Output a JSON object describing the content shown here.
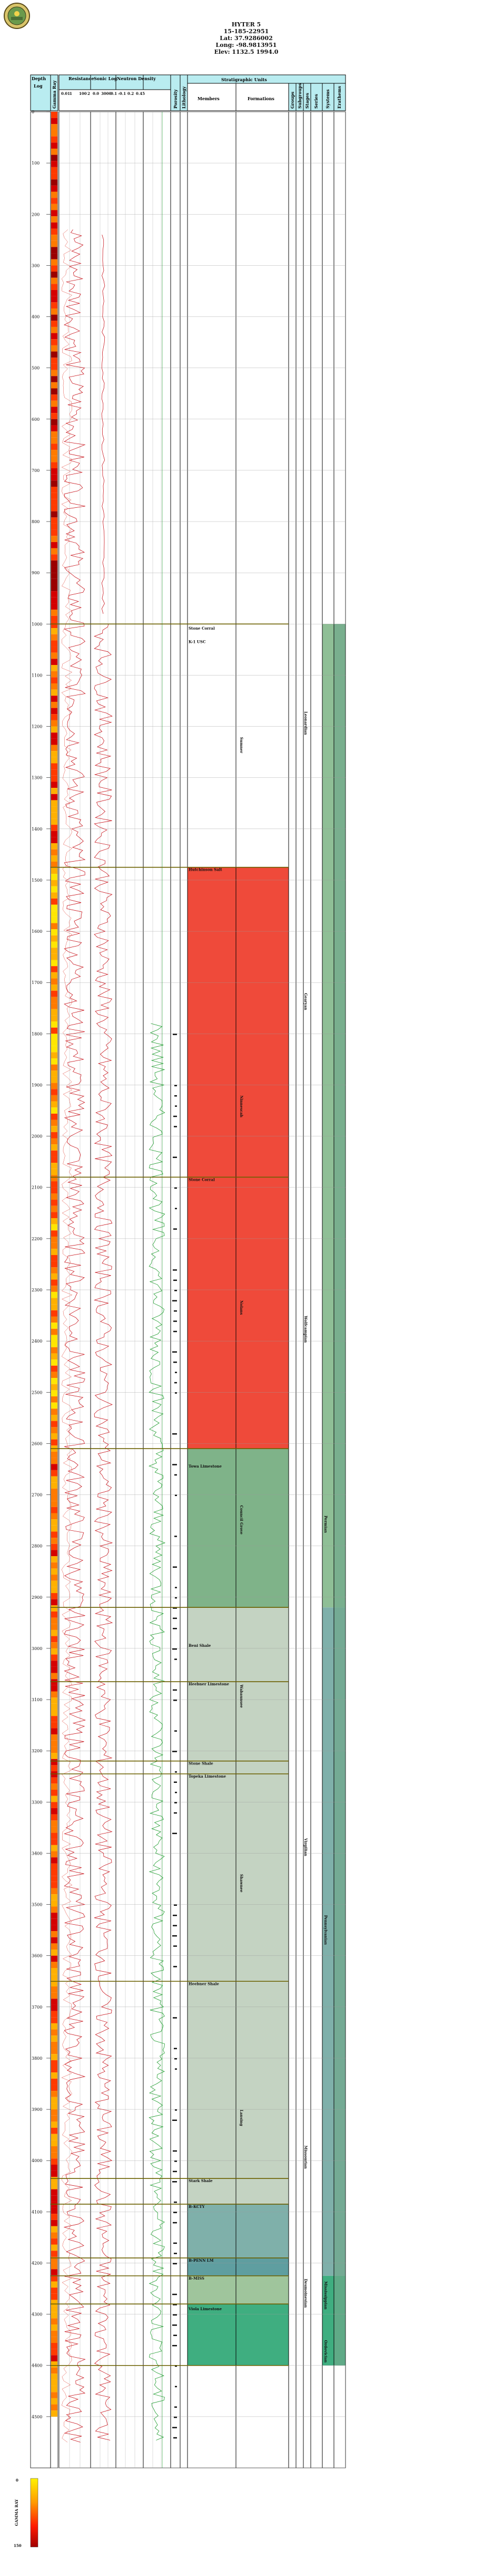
{
  "header": {
    "well_name": "HYTER 5",
    "api": "15-185-22951",
    "lat": "Lat: 37.9286002",
    "long": "Long: -98.9813951",
    "elev": "Elev: 1132.5 1994.0"
  },
  "columns": {
    "depth": "Depth",
    "log": "Log",
    "gamma_ray": "Gamma Ray",
    "gr_scale": "0",
    "resistance": "Resistance",
    "res_scale": [
      "0.01",
      "1",
      "100",
      "2"
    ],
    "sonic": "Sonic Log",
    "sonic_scale": [
      "0.0",
      "3000",
      "0.1"
    ],
    "density": "Neutron Density",
    "density_scale": [
      "-0.1",
      "0.2",
      "0.45"
    ],
    "porosity": "Porosity",
    "lithology": "Lithology",
    "strat_units": "Stratigraphic Units",
    "members": "Members",
    "formations": "Formations",
    "groups": "Groups",
    "subgroups": "Subgroups",
    "stages": "Stages",
    "series": "Series",
    "systems": "Systems",
    "erathems": "Erathems"
  },
  "depth_ticks": [
    "0",
    "100",
    "200",
    "300",
    "400",
    "500",
    "600",
    "700",
    "800",
    "900",
    "1000",
    "1100",
    "1200",
    "1300",
    "1400",
    "1500",
    "1600",
    "1700",
    "1800",
    "1900",
    "2000",
    "2100",
    "2200",
    "2300",
    "2400",
    "2500",
    "2600",
    "2700",
    "2800",
    "2900",
    "3000",
    "3100",
    "3200",
    "3300",
    "3400",
    "3500",
    "3600",
    "3700",
    "3800",
    "3900",
    "4000",
    "4100",
    "4200",
    "4300",
    "4400",
    "4500"
  ],
  "members": [
    {
      "label": "Stone Corral",
      "depth": 1004
    },
    {
      "label": "K-1 USC",
      "depth": 1030
    },
    {
      "label": "Hutchinson Salt",
      "depth": 1475
    },
    {
      "label": "Stone Corral",
      "depth": 2080
    },
    {
      "label": "Towa Limestone",
      "depth": 2640
    },
    {
      "label": "Beni Shale",
      "depth": 2990
    },
    {
      "label": "Heebner Limestone",
      "depth": 3065
    },
    {
      "label": "Stone Shale",
      "depth": 3220
    },
    {
      "label": "Topeka Limestone",
      "depth": 3245
    },
    {
      "label": "Heebner Shale",
      "depth": 3650
    },
    {
      "label": "Stark Shale",
      "depth": 4035
    },
    {
      "label": "B-KCTY",
      "depth": 4085
    },
    {
      "label": "B-PENN LM",
      "depth": 4190
    },
    {
      "label": "B-MISS",
      "depth": 4225
    },
    {
      "label": "Viola Limestone",
      "depth": 4285
    }
  ],
  "formations": [
    {
      "label": "Sumner",
      "depth": 1200
    },
    {
      "label": "Ninnescah",
      "depth": 1900
    },
    {
      "label": "Nolans",
      "depth": 2300
    },
    {
      "label": "Council Grove",
      "depth": 2700
    },
    {
      "label": "Wabaunsee",
      "depth": 3050
    },
    {
      "label": "Shawnee",
      "depth": 3420
    },
    {
      "label": "Lansing",
      "depth": 3880
    }
  ],
  "groups": [
    {
      "label": "Leonardian",
      "depth": 1150
    },
    {
      "label": "Gearyan",
      "depth": 1700
    },
    {
      "label": "Wolfcampian",
      "depth": 2330
    },
    {
      "label": "Virgilian",
      "depth": 3350
    },
    {
      "label": "Missourian",
      "depth": 3950
    },
    {
      "label": "Desmoinesian",
      "depth": 4210
    }
  ],
  "series": [
    {
      "label": "Permian",
      "depth": 2720
    },
    {
      "label": "Pennsylvanian",
      "depth": 3500
    },
    {
      "label": "Mississippian",
      "depth": 4215
    },
    {
      "label": "Ordovician",
      "depth": 4330
    }
  ],
  "colorbar": {
    "title": "GAMMA RAY",
    "min": "0",
    "max": "150"
  },
  "colors": {
    "header_bg": "#b9ecf0",
    "permian_red": "#ef4a3a",
    "permian_green": "#7fb389",
    "penn_gray": "#c4d3c2",
    "penn_teal": "#7fb0aa",
    "miss_blue": "#5f9ea0",
    "ordovician_green": "#3fae80"
  }
}
